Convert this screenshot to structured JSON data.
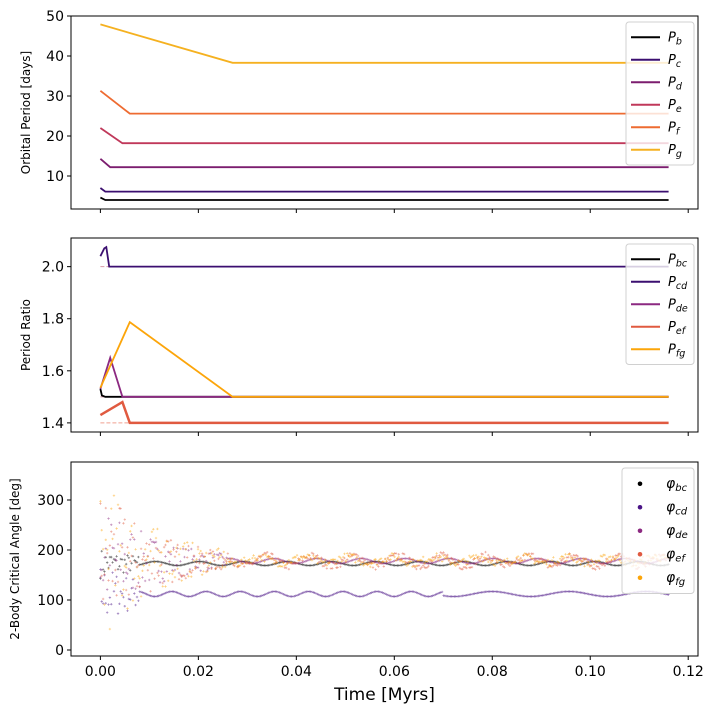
{
  "chart_data": [
    {
      "type": "line",
      "ylabel": "Orbital Period [days]",
      "xlabel": "",
      "xlim": [
        -0.006,
        0.122
      ],
      "ylim": [
        1.75,
        50
      ],
      "yticks": [
        10,
        20,
        30,
        40,
        50
      ],
      "ytick_labels": [
        "10",
        "20",
        "30",
        "40",
        "50"
      ],
      "xticks": [
        0.0,
        0.02,
        0.04,
        0.06,
        0.08,
        0.1,
        0.12
      ],
      "legend": "top-right",
      "series": [
        {
          "name": "P_b",
          "label_main": "P",
          "label_sub": "b",
          "color": "#000000",
          "x": [
            0,
            0.001,
            0.116
          ],
          "y": [
            4.6,
            4.0,
            4.0
          ]
        },
        {
          "name": "P_c",
          "label_main": "P",
          "label_sub": "c",
          "color": "#3b0f70",
          "x": [
            0,
            0.001,
            0.116
          ],
          "y": [
            7.0,
            6.1,
            6.1
          ]
        },
        {
          "name": "P_d",
          "label_main": "P",
          "label_sub": "d",
          "color": "#7c1d6f",
          "x": [
            0,
            0.002,
            0.116
          ],
          "y": [
            14.3,
            12.2,
            12.2
          ]
        },
        {
          "name": "P_e",
          "label_main": "P",
          "label_sub": "e",
          "color": "#c0385a",
          "x": [
            0,
            0.0045,
            0.116
          ],
          "y": [
            22.0,
            18.2,
            18.2
          ]
        },
        {
          "name": "P_f",
          "label_main": "P",
          "label_sub": "f",
          "color": "#ee6b31",
          "x": [
            0,
            0.006,
            0.116
          ],
          "y": [
            31.3,
            25.6,
            25.6
          ]
        },
        {
          "name": "P_g",
          "label_main": "P",
          "label_sub": "g",
          "color": "#f5b120",
          "x": [
            0,
            0.027,
            0.116
          ],
          "y": [
            47.9,
            38.3,
            38.3
          ]
        }
      ]
    },
    {
      "type": "line",
      "ylabel": "Period Ratio",
      "xlabel": "",
      "xlim": [
        -0.006,
        0.122
      ],
      "ylim": [
        1.365,
        2.11
      ],
      "yticks": [
        1.4,
        1.6,
        1.8,
        2.0
      ],
      "ytick_labels": [
        "1.4",
        "1.6",
        "1.8",
        "2.0"
      ],
      "xticks": [
        0.0,
        0.02,
        0.04,
        0.06,
        0.08,
        0.1,
        0.12
      ],
      "legend": "top-right",
      "reference_lines": [
        {
          "value": 2.0,
          "color": "#d89aa8"
        },
        {
          "value": 1.5,
          "color": "#d89aa8"
        },
        {
          "value": 1.4,
          "color": "#f0a090"
        }
      ],
      "series": [
        {
          "name": "P_bc",
          "label_main": "P",
          "label_sub": "bc",
          "color": "#000000",
          "x": [
            0,
            0.0003,
            0.001,
            0.002,
            0.116
          ],
          "y": [
            1.53,
            1.505,
            1.5,
            1.5,
            1.5
          ]
        },
        {
          "name": "P_cd",
          "label_main": "P",
          "label_sub": "cd",
          "color": "#3b0f70",
          "x": [
            0,
            0.0008,
            0.0012,
            0.0018,
            0.116
          ],
          "y": [
            2.04,
            2.07,
            2.075,
            2.0,
            2.0
          ]
        },
        {
          "name": "P_de",
          "label_main": "P",
          "label_sub": "de",
          "color": "#8c2981",
          "x": [
            0,
            0.002,
            0.0045,
            0.116
          ],
          "y": [
            1.53,
            1.65,
            1.5,
            1.5
          ]
        },
        {
          "name": "P_ef",
          "label_main": "P",
          "label_sub": "ef",
          "color": "#e05a40",
          "x": [
            0,
            0.0045,
            0.006,
            0.116
          ],
          "y": [
            1.43,
            1.48,
            1.4,
            1.4
          ]
        },
        {
          "name": "P_fg",
          "label_main": "P",
          "label_sub": "fg",
          "color": "#fca50a",
          "x": [
            0,
            0.006,
            0.027,
            0.116
          ],
          "y": [
            1.535,
            1.787,
            1.5,
            1.5
          ]
        }
      ]
    },
    {
      "type": "scatter",
      "ylabel": "2-Body Critical Angle [deg]",
      "xlabel": "Time [Myrs]",
      "xlim": [
        -0.006,
        0.122
      ],
      "ylim": [
        -12,
        376
      ],
      "yticks": [
        0,
        100,
        200,
        300
      ],
      "ytick_labels": [
        "0",
        "100",
        "200",
        "300"
      ],
      "xticks": [
        0.0,
        0.02,
        0.04,
        0.06,
        0.08,
        0.1,
        0.12
      ],
      "xtick_labels": [
        "0.00",
        "0.02",
        "0.04",
        "0.06",
        "0.08",
        "0.10",
        "0.12"
      ],
      "legend": "top-right",
      "series": [
        {
          "name": "phi_bc",
          "label_main": "φ",
          "label_sub": "bc",
          "color": "#000000",
          "center": 173,
          "amplitude": 4,
          "scatter_early": 30
        },
        {
          "name": "phi_cd",
          "label_main": "φ",
          "label_sub": "cd",
          "color": "#4a1486",
          "center": 112,
          "amplitude": 5,
          "scatter_early": 60
        },
        {
          "name": "phi_de",
          "label_main": "φ",
          "label_sub": "de",
          "color": "#8c2981",
          "center": 178,
          "amplitude": 5,
          "scatter_early": 120
        },
        {
          "name": "phi_ef",
          "label_main": "φ",
          "label_sub": "ef",
          "color": "#e05a40",
          "center": 178,
          "amplitude": 10,
          "scatter_early": 150
        },
        {
          "name": "phi_fg",
          "label_main": "φ",
          "label_sub": "fg",
          "color": "#fca50a",
          "center": 180,
          "amplitude": 6,
          "scatter_early": 170
        }
      ]
    }
  ]
}
